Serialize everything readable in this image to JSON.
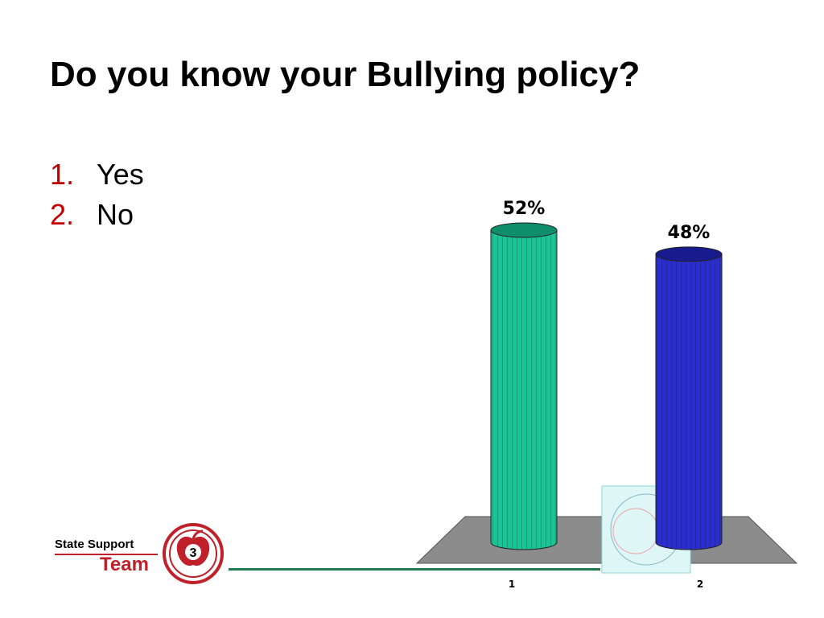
{
  "slide": {
    "title": "Do you know your Bullying policy?",
    "options": [
      {
        "number": "1.",
        "label": "Yes"
      },
      {
        "number": "2.",
        "label": "No"
      }
    ]
  },
  "logo": {
    "line1": "State Support",
    "line2": "Team",
    "badge_number": "3"
  },
  "colors": {
    "option_number": "#c00000",
    "bar_yes": "#19c497",
    "bar_no": "#2a2ed0",
    "floor": "#8c8c8c",
    "logo_red": "#c0202a",
    "footer_rule": "#1f7a4f"
  },
  "chart_data": {
    "type": "bar",
    "style": "3d-cylinder",
    "categories": [
      "1",
      "2"
    ],
    "values": [
      52,
      48
    ],
    "data_labels": [
      "52%",
      "48%"
    ],
    "unit": "%",
    "ylim": [
      0,
      60
    ],
    "grid": false,
    "legend": "none"
  }
}
